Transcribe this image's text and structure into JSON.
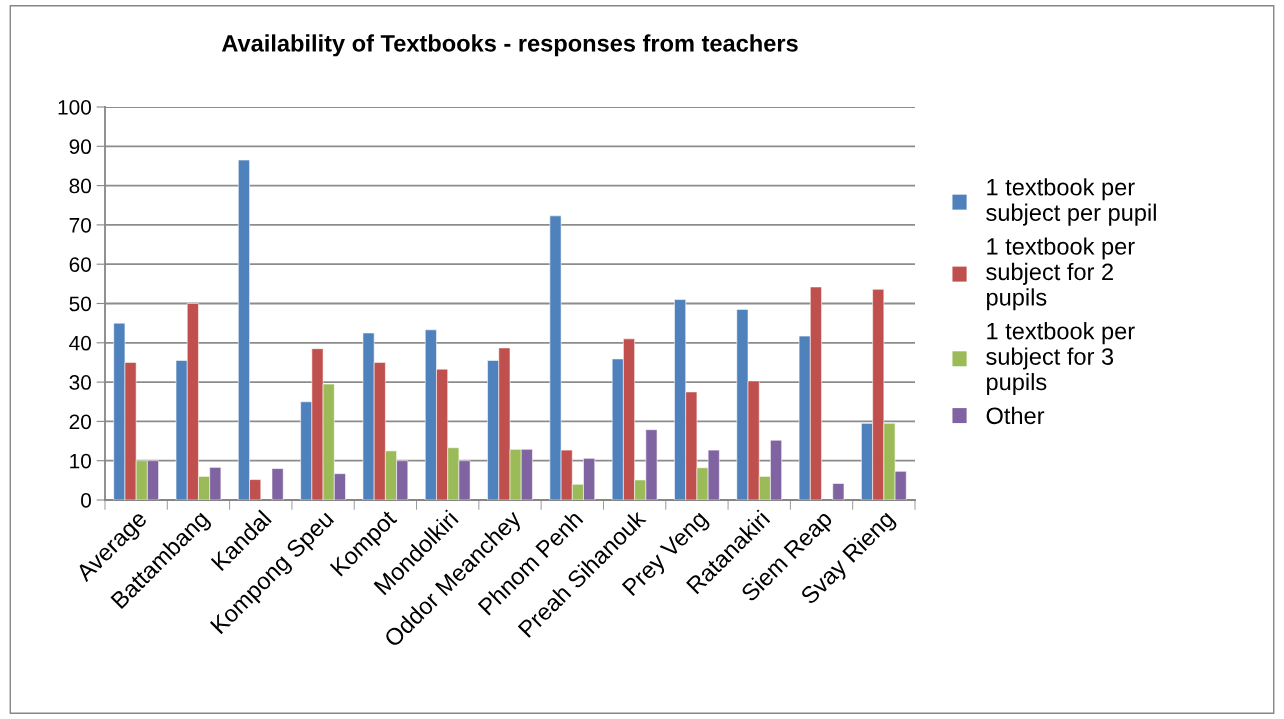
{
  "chart_data": {
    "type": "bar",
    "title": "Availability of Textbooks - responses from teachers",
    "categories": [
      "Average",
      "Battambang",
      "Kandal",
      "Kompong Speu",
      "Kompot",
      "Mondolkiri",
      "Oddor Meanchey",
      "Phnom Penh",
      "Preah Sihanouk",
      "Prey Veng",
      "Ratanakiri",
      "Siem Reap",
      "Svay Rieng"
    ],
    "series": [
      {
        "name": "1 textbook per subject per pupil",
        "color": "#4f81bd",
        "values": [
          45,
          35.5,
          86.5,
          25,
          42.5,
          43.3,
          35.5,
          72.3,
          35.9,
          51,
          48.5,
          41.7,
          19.5
        ]
      },
      {
        "name": "1 textbook per subject for 2 pupils",
        "color": "#c0504d",
        "values": [
          35,
          50,
          5.2,
          38.5,
          35,
          33.3,
          38.7,
          12.7,
          41,
          27.5,
          30.3,
          54.2,
          53.6
        ]
      },
      {
        "name": "1 textbook per subject for 3 pupils",
        "color": "#9bbb59",
        "values": [
          10,
          6,
          null,
          29.5,
          12.5,
          13.3,
          12.9,
          4,
          5.1,
          8.2,
          6,
          null,
          19.5
        ]
      },
      {
        "name": "Other",
        "color": "#8064a2",
        "values": [
          10,
          8.3,
          8,
          6.7,
          10,
          10,
          12.9,
          10.6,
          17.9,
          12.7,
          15.2,
          4.2,
          7.3
        ]
      }
    ],
    "ylim": [
      0,
      100
    ],
    "yticks": [
      0,
      10,
      20,
      30,
      40,
      50,
      60,
      70,
      80,
      90,
      100
    ],
    "grid": "y",
    "legend": "right"
  }
}
